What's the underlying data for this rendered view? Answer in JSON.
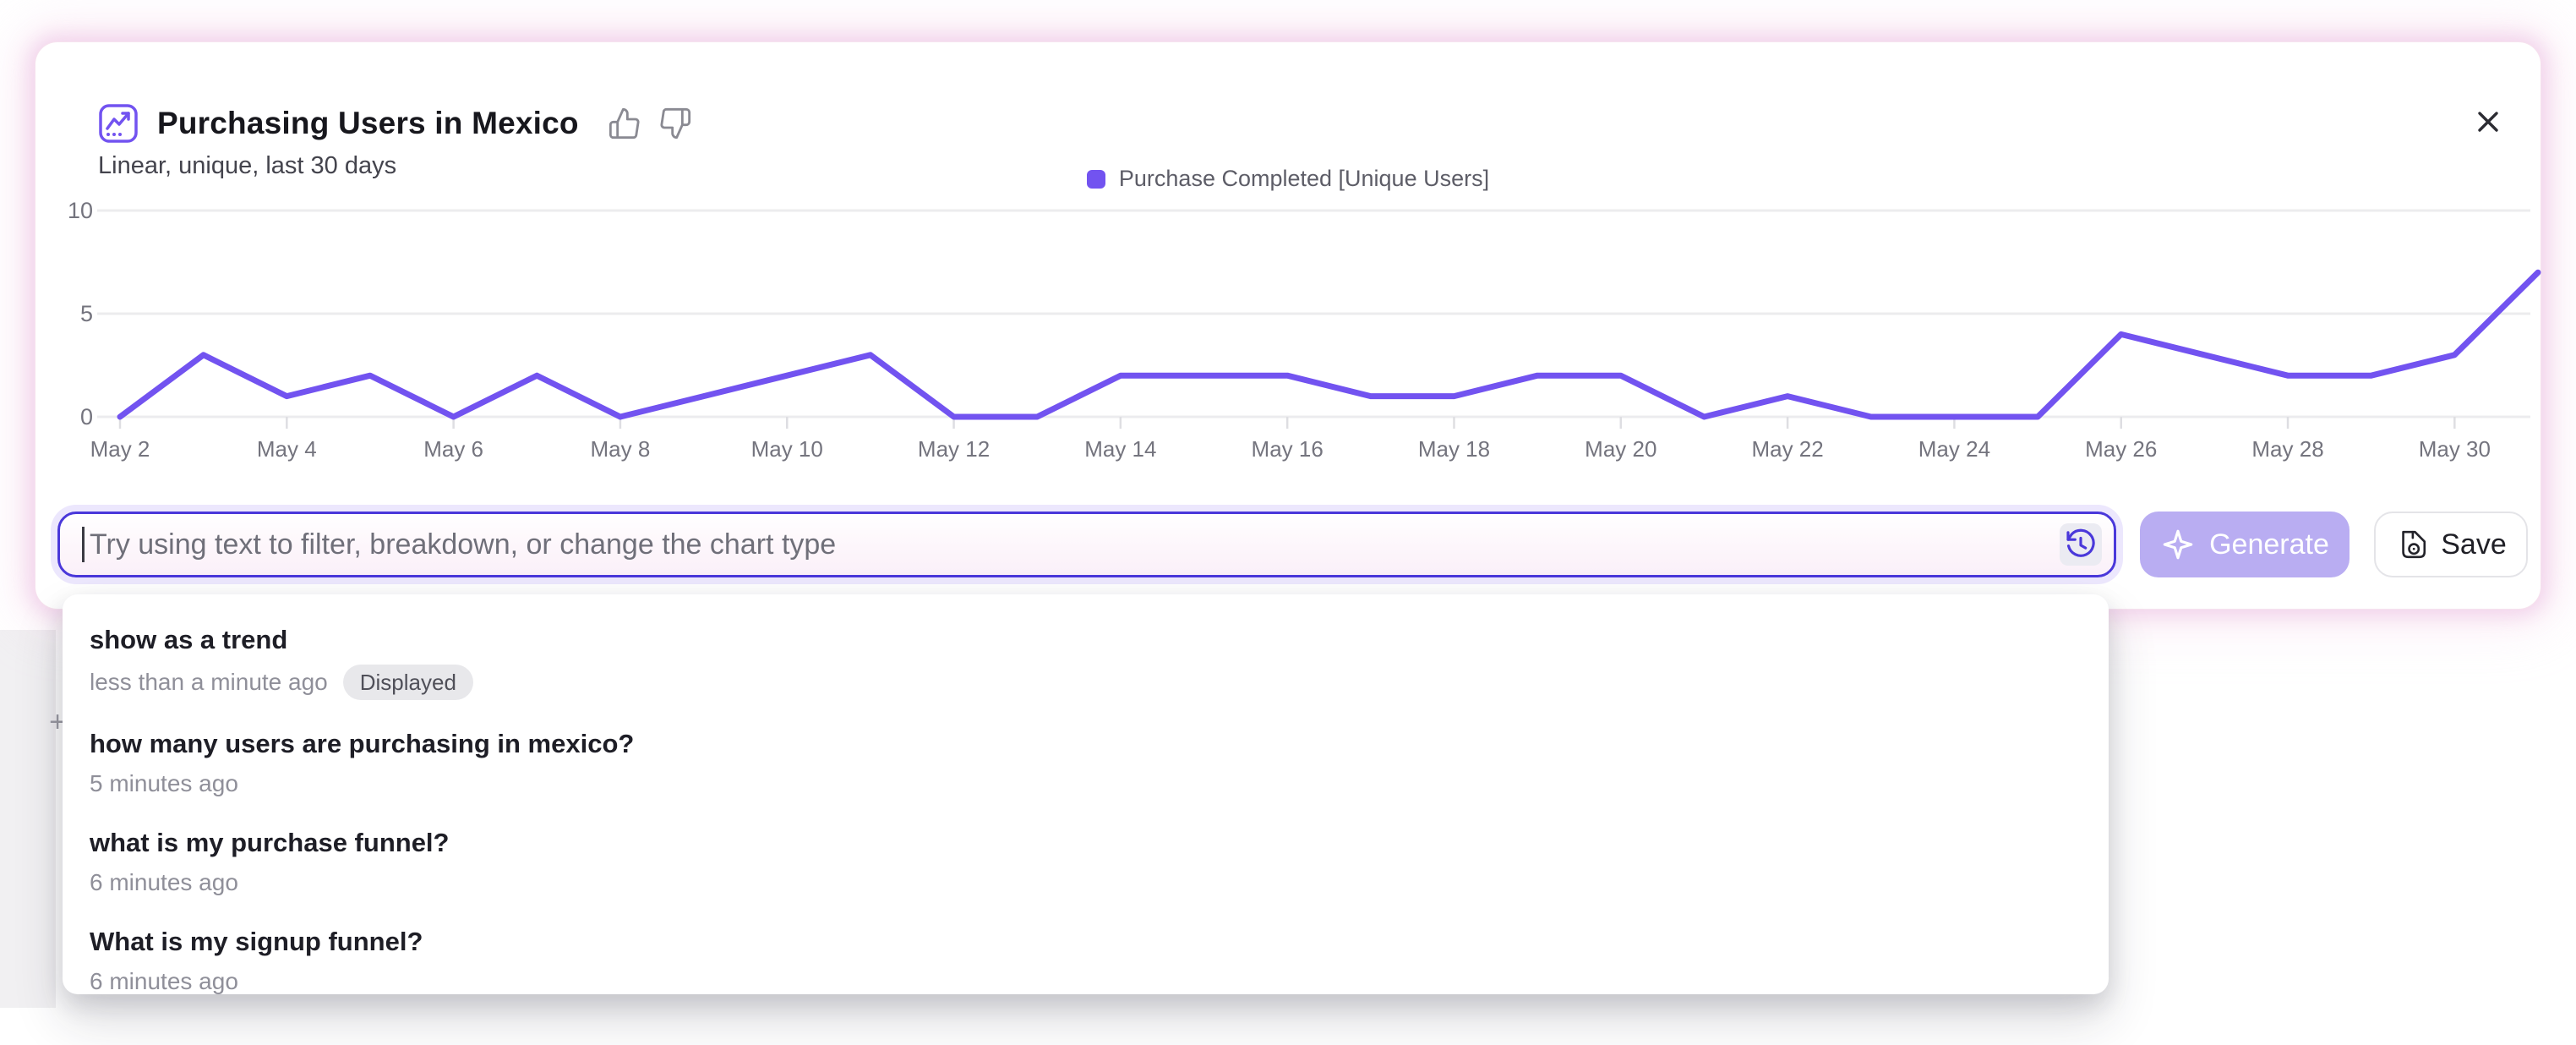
{
  "header": {
    "title": "Purchasing Users in Mexico",
    "subtitle": "Linear, unique, last 30 days"
  },
  "chart_data": {
    "type": "line",
    "title": "Purchasing Users in Mexico",
    "categories": [
      "May 2",
      "May 3",
      "May 4",
      "May 5",
      "May 6",
      "May 7",
      "May 8",
      "May 9",
      "May 10",
      "May 11",
      "May 12",
      "May 13",
      "May 14",
      "May 15",
      "May 16",
      "May 17",
      "May 18",
      "May 19",
      "May 20",
      "May 21",
      "May 22",
      "May 23",
      "May 24",
      "May 25",
      "May 26",
      "May 27",
      "May 28",
      "May 29",
      "May 30",
      "May 31"
    ],
    "series": [
      {
        "name": "Purchase Completed [Unique Users]",
        "color": "#7253f0",
        "values": [
          0,
          3,
          1,
          2,
          0,
          2,
          0,
          1,
          2,
          3,
          0,
          0,
          2,
          2,
          2,
          1,
          1,
          2,
          2,
          0,
          1,
          0,
          0,
          0,
          4,
          3,
          2,
          2,
          3,
          7
        ]
      }
    ],
    "x_tick_labels": [
      "May 2",
      "May 4",
      "May 6",
      "May 8",
      "May 10",
      "May 12",
      "May 14",
      "May 16",
      "May 18",
      "May 20",
      "May 22",
      "May 24",
      "May 26",
      "May 28",
      "May 30"
    ],
    "y_ticks": [
      0,
      5,
      10
    ],
    "ylim": [
      0,
      10
    ],
    "grid": "horizontal",
    "legend_position": "top-center"
  },
  "prompt_bar": {
    "value": "",
    "placeholder": "Try using text to filter, breakdown, or change the chart type",
    "generate_label": "Generate",
    "save_label": "Save"
  },
  "history_dropdown": {
    "items": [
      {
        "query": "show as a trend",
        "time": "less than a minute ago",
        "badge": "Displayed"
      },
      {
        "query": "how many users are purchasing in mexico?",
        "time": "5 minutes ago",
        "badge": ""
      },
      {
        "query": "what is my purchase funnel?",
        "time": "6 minutes ago",
        "badge": ""
      },
      {
        "query": "What is my signup funnel?",
        "time": "6 minutes ago",
        "badge": ""
      }
    ]
  },
  "background": {
    "plus_label": "+"
  },
  "icons": {
    "report_chart": "line-chart-in-rounded-square",
    "thumbs_up": "thumbs-up-outline",
    "thumbs_down": "thumbs-down-outline",
    "close": "x-mark",
    "history": "clock-with-ccw-arrow",
    "sparkle": "four-point-star-outline",
    "save": "floppy-disk-outline",
    "plus": "plus-sign"
  },
  "colors": {
    "accent_purple": "#7253f0",
    "input_border": "#4a38da",
    "generate_bg": "#b9adf2",
    "glow_pink": "#f2badb",
    "grid_line": "#ececee",
    "axis_text": "#74747e",
    "badge_bg": "#e8e8eb"
  }
}
